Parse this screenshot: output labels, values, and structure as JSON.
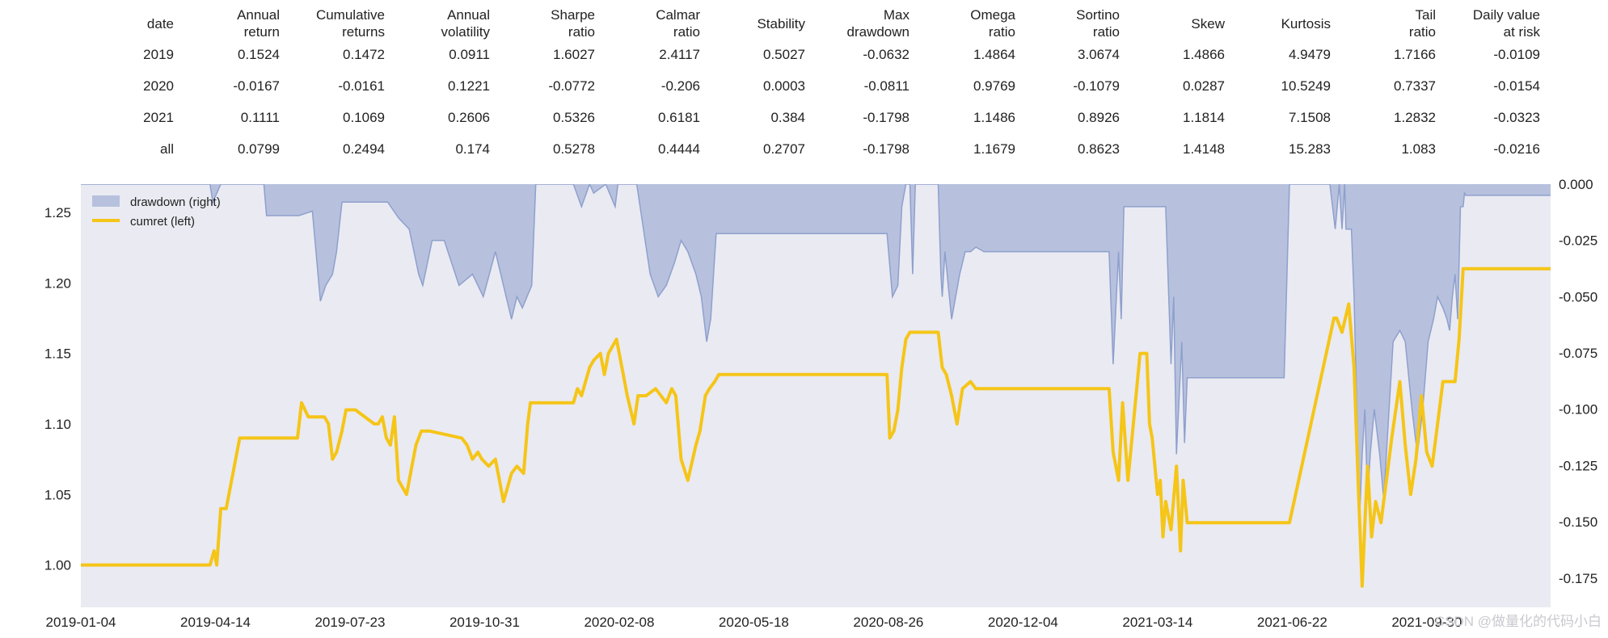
{
  "table": {
    "columns": [
      [
        "date"
      ],
      [
        "Annual",
        "return"
      ],
      [
        "Cumulative",
        "returns"
      ],
      [
        "Annual",
        "volatility"
      ],
      [
        "Sharpe",
        "ratio"
      ],
      [
        "Calmar",
        "ratio"
      ],
      [
        "Stability"
      ],
      [
        "Max",
        "drawdown"
      ],
      [
        "Omega",
        "ratio"
      ],
      [
        "Sortino",
        "ratio"
      ],
      [
        "Skew"
      ],
      [
        "Kurtosis"
      ],
      [
        "Tail",
        "ratio"
      ],
      [
        "Daily value",
        "at risk"
      ]
    ],
    "rows": [
      [
        "2019",
        "0.1524",
        "0.1472",
        "0.0911",
        "1.6027",
        "2.4117",
        "0.5027",
        "-0.0632",
        "1.4864",
        "3.0674",
        "1.4866",
        "4.9479",
        "1.7166",
        "-0.0109"
      ],
      [
        "2020",
        "-0.0167",
        "-0.0161",
        "0.1221",
        "-0.0772",
        "-0.206",
        "0.0003",
        "-0.0811",
        "0.9769",
        "-0.1079",
        "0.0287",
        "10.5249",
        "0.7337",
        "-0.0154"
      ],
      [
        "2021",
        "0.1111",
        "0.1069",
        "0.2606",
        "0.5326",
        "0.6181",
        "0.384",
        "-0.1798",
        "1.1486",
        "0.8926",
        "1.1814",
        "7.1508",
        "1.2832",
        "-0.0323"
      ],
      [
        "all",
        "0.0799",
        "0.2494",
        "0.174",
        "0.5278",
        "0.4444",
        "0.2707",
        "-0.1798",
        "1.1679",
        "0.8623",
        "1.4148",
        "15.283",
        "1.083",
        "-0.0216"
      ]
    ]
  },
  "watermark": "CSDN @做量化的代码小白",
  "chart_data": {
    "type": "line",
    "xlim": [
      "2019-01-04",
      "2021-12-31"
    ],
    "x_ticks": [
      "2019-01-04",
      "2019-04-14",
      "2019-07-23",
      "2019-10-31",
      "2020-02-08",
      "2020-05-18",
      "2020-08-26",
      "2020-12-04",
      "2021-03-14",
      "2021-06-22",
      "2021-09-30"
    ],
    "ylim_left": [
      0.97,
      1.27
    ],
    "y_ticks_left": [
      "1.00",
      "1.05",
      "1.10",
      "1.15",
      "1.20",
      "1.25"
    ],
    "ylim_right": [
      -0.188,
      0.0
    ],
    "y_ticks_right": [
      "0.000",
      "-0.025",
      "-0.050",
      "-0.075",
      "-0.100",
      "-0.125",
      "-0.150",
      "-0.175"
    ],
    "grid": false,
    "background": "#eaeaf2",
    "legend_position": "top-left",
    "series": [
      {
        "name": "drawdown (right)",
        "type": "area",
        "axis": "right",
        "color": "#a3b1d6",
        "x": [
          "2019-01-04",
          "2019-04-10",
          "2019-04-12",
          "2019-04-18",
          "2019-05-20",
          "2019-05-22",
          "2019-06-15",
          "2019-06-25",
          "2019-07-01",
          "2019-07-05",
          "2019-07-10",
          "2019-07-13",
          "2019-07-17",
          "2019-07-20",
          "2019-08-20",
          "2019-08-28",
          "2019-09-05",
          "2019-09-12",
          "2019-09-15",
          "2019-09-22",
          "2019-10-01",
          "2019-10-12",
          "2019-10-22",
          "2019-10-30",
          "2019-11-08",
          "2019-11-16",
          "2019-11-20",
          "2019-11-24",
          "2019-11-28",
          "2019-12-05",
          "2019-12-08",
          "2019-12-20",
          "2020-01-05",
          "2020-01-11",
          "2020-01-17",
          "2020-01-20",
          "2020-01-29",
          "2020-02-05",
          "2020-02-07",
          "2020-02-09",
          "2020-02-15",
          "2020-02-21",
          "2020-02-26",
          "2020-03-02",
          "2020-03-08",
          "2020-03-14",
          "2020-03-20",
          "2020-03-25",
          "2020-03-30",
          "2020-04-05",
          "2020-04-09",
          "2020-04-13",
          "2020-04-16",
          "2020-04-20",
          "2020-04-25",
          "2020-08-25",
          "2020-08-29",
          "2020-09-02",
          "2020-09-05",
          "2020-09-08",
          "2020-09-11",
          "2020-09-13",
          "2020-09-15",
          "2020-10-02",
          "2020-10-04",
          "2020-10-05",
          "2020-10-07",
          "2020-10-12",
          "2020-10-18",
          "2020-10-20",
          "2020-10-22",
          "2020-10-26",
          "2020-10-30",
          "2020-11-05",
          "2021-02-06",
          "2021-02-09",
          "2021-02-13",
          "2021-02-15",
          "2021-02-17",
          "2021-02-20",
          "2021-02-23",
          "2021-02-25",
          "2021-02-28",
          "2021-03-20",
          "2021-03-24",
          "2021-03-26",
          "2021-03-28",
          "2021-04-01",
          "2021-04-03",
          "2021-04-05",
          "2021-06-16",
          "2021-06-20",
          "2021-07-20",
          "2021-07-24",
          "2021-07-27",
          "2021-07-29",
          "2021-07-31",
          "2021-08-01",
          "2021-08-05",
          "2021-08-07",
          "2021-08-09",
          "2021-08-11",
          "2021-08-13",
          "2021-08-15",
          "2021-08-17",
          "2021-08-19",
          "2021-08-22",
          "2021-08-26",
          "2021-08-29",
          "2021-09-02",
          "2021-09-05",
          "2021-09-10",
          "2021-09-14",
          "2021-09-19",
          "2021-09-23",
          "2021-09-27",
          "2021-10-01",
          "2021-10-05",
          "2021-10-08",
          "2021-10-12",
          "2021-10-15",
          "2021-10-17",
          "2021-10-19",
          "2021-10-21",
          "2021-10-23",
          "2021-10-25",
          "2021-10-27",
          "2021-10-28",
          "2021-10-29",
          "2021-12-31"
        ],
        "y": [
          0.0,
          0.0,
          -0.008,
          0.0,
          0.0,
          -0.014,
          -0.014,
          -0.012,
          -0.052,
          -0.045,
          -0.04,
          -0.03,
          -0.008,
          -0.008,
          -0.008,
          -0.015,
          -0.02,
          -0.04,
          -0.045,
          -0.025,
          -0.025,
          -0.045,
          -0.04,
          -0.05,
          -0.03,
          -0.05,
          -0.06,
          -0.05,
          -0.055,
          -0.045,
          0.0,
          0.0,
          0.0,
          -0.01,
          0.0,
          -0.004,
          0.0,
          -0.01,
          0.0,
          0.0,
          0.0,
          0.0,
          -0.02,
          -0.04,
          -0.05,
          -0.045,
          -0.035,
          -0.025,
          -0.03,
          -0.04,
          -0.05,
          -0.07,
          -0.06,
          -0.022,
          -0.022,
          -0.022,
          -0.05,
          -0.045,
          -0.01,
          0.0,
          0.0,
          -0.04,
          0.0,
          0.0,
          -0.04,
          -0.05,
          -0.03,
          -0.06,
          -0.04,
          -0.035,
          -0.03,
          -0.03,
          -0.028,
          -0.03,
          -0.03,
          -0.08,
          -0.03,
          -0.06,
          -0.01,
          -0.01,
          -0.01,
          -0.01,
          -0.01,
          -0.01,
          -0.08,
          -0.05,
          -0.12,
          -0.07,
          -0.115,
          -0.086,
          -0.086,
          0.0,
          0.0,
          -0.02,
          0.0,
          -0.02,
          0.0,
          -0.02,
          -0.02,
          -0.05,
          -0.1,
          -0.15,
          -0.12,
          -0.1,
          -0.14,
          -0.12,
          -0.1,
          -0.12,
          -0.14,
          -0.1,
          -0.07,
          -0.065,
          -0.07,
          -0.1,
          -0.12,
          -0.1,
          -0.07,
          -0.06,
          -0.05,
          -0.055,
          -0.06,
          -0.065,
          -0.05,
          -0.04,
          -0.06,
          -0.01,
          -0.01,
          -0.004,
          -0.005,
          -0.005
        ]
      },
      {
        "name": "cumret (left)",
        "type": "line",
        "axis": "left",
        "color": "#f5c518",
        "x": [
          "2019-01-04",
          "2019-04-10",
          "2019-04-13",
          "2019-04-15",
          "2019-04-18",
          "2019-04-22",
          "2019-04-26",
          "2019-05-02",
          "2019-05-06",
          "2019-05-08",
          "2019-06-14",
          "2019-06-17",
          "2019-06-22",
          "2019-06-30",
          "2019-07-04",
          "2019-07-07",
          "2019-07-10",
          "2019-07-13",
          "2019-07-17",
          "2019-07-20",
          "2019-07-23",
          "2019-07-27",
          "2019-08-10",
          "2019-08-13",
          "2019-08-16",
          "2019-08-19",
          "2019-08-22",
          "2019-08-25",
          "2019-08-28",
          "2019-09-03",
          "2019-09-07",
          "2019-09-10",
          "2019-09-14",
          "2019-09-20",
          "2019-10-14",
          "2019-10-18",
          "2019-10-22",
          "2019-10-26",
          "2019-10-29",
          "2019-11-03",
          "2019-11-08",
          "2019-11-14",
          "2019-11-20",
          "2019-11-24",
          "2019-11-29",
          "2019-12-02",
          "2019-12-04",
          "2019-12-09",
          "2019-12-15",
          "2020-01-05",
          "2020-01-08",
          "2020-01-11",
          "2020-01-17",
          "2020-01-20",
          "2020-01-25",
          "2020-01-28",
          "2020-01-31",
          "2020-02-03",
          "2020-02-06",
          "2020-02-10",
          "2020-02-14",
          "2020-02-19",
          "2020-02-22",
          "2020-02-28",
          "2020-03-06",
          "2020-03-14",
          "2020-03-18",
          "2020-03-21",
          "2020-03-25",
          "2020-03-30",
          "2020-04-05",
          "2020-04-08",
          "2020-04-12",
          "2020-04-15",
          "2020-04-19",
          "2020-04-22",
          "2020-08-25",
          "2020-08-27",
          "2020-08-30",
          "2020-09-02",
          "2020-09-05",
          "2020-09-08",
          "2020-09-11",
          "2020-09-14",
          "2020-09-20",
          "2020-10-02",
          "2020-10-05",
          "2020-10-08",
          "2020-10-12",
          "2020-10-16",
          "2020-10-20",
          "2020-10-26",
          "2020-10-30",
          "2021-02-06",
          "2021-02-09",
          "2021-02-13",
          "2021-02-16",
          "2021-02-20",
          "2021-02-23",
          "2021-03-01",
          "2021-03-06",
          "2021-03-08",
          "2021-03-10",
          "2021-03-14",
          "2021-03-16",
          "2021-03-18",
          "2021-03-20",
          "2021-03-24",
          "2021-03-28",
          "2021-03-31",
          "2021-04-02",
          "2021-04-05",
          "2021-04-20",
          "2021-06-15",
          "2021-06-20",
          "2021-07-23",
          "2021-07-25",
          "2021-07-29",
          "2021-08-03",
          "2021-08-07",
          "2021-08-10",
          "2021-08-13",
          "2021-08-15",
          "2021-08-17",
          "2021-08-20",
          "2021-08-23",
          "2021-08-27",
          "2021-08-31",
          "2021-09-04",
          "2021-09-07",
          "2021-09-10",
          "2021-09-14",
          "2021-09-18",
          "2021-09-22",
          "2021-09-26",
          "2021-09-30",
          "2021-10-04",
          "2021-10-08",
          "2021-10-12",
          "2021-10-15",
          "2021-10-18",
          "2021-10-21",
          "2021-10-24",
          "2021-10-27",
          "2021-10-29",
          "2021-12-31"
        ],
        "y": [
          1.0,
          1.0,
          1.01,
          1.0,
          1.04,
          1.04,
          1.06,
          1.09,
          1.09,
          1.09,
          1.09,
          1.115,
          1.105,
          1.105,
          1.105,
          1.1,
          1.075,
          1.08,
          1.095,
          1.11,
          1.11,
          1.11,
          1.1,
          1.1,
          1.105,
          1.09,
          1.085,
          1.105,
          1.06,
          1.05,
          1.07,
          1.085,
          1.095,
          1.095,
          1.09,
          1.085,
          1.075,
          1.08,
          1.075,
          1.07,
          1.075,
          1.045,
          1.065,
          1.07,
          1.065,
          1.1,
          1.115,
          1.115,
          1.115,
          1.115,
          1.125,
          1.12,
          1.14,
          1.145,
          1.15,
          1.135,
          1.15,
          1.155,
          1.16,
          1.14,
          1.12,
          1.1,
          1.12,
          1.12,
          1.125,
          1.115,
          1.125,
          1.12,
          1.075,
          1.06,
          1.085,
          1.095,
          1.12,
          1.125,
          1.13,
          1.135,
          1.135,
          1.09,
          1.095,
          1.11,
          1.14,
          1.16,
          1.165,
          1.165,
          1.165,
          1.165,
          1.14,
          1.135,
          1.12,
          1.1,
          1.125,
          1.13,
          1.125,
          1.125,
          1.08,
          1.06,
          1.115,
          1.06,
          1.09,
          1.15,
          1.15,
          1.1,
          1.09,
          1.05,
          1.06,
          1.02,
          1.045,
          1.025,
          1.07,
          1.01,
          1.06,
          1.03,
          1.03,
          1.03,
          1.03,
          1.175,
          1.175,
          1.165,
          1.185,
          1.14,
          1.06,
          0.985,
          1.03,
          1.07,
          1.02,
          1.045,
          1.03,
          1.06,
          1.09,
          1.11,
          1.13,
          1.085,
          1.05,
          1.075,
          1.12,
          1.08,
          1.07,
          1.1,
          1.13,
          1.13,
          1.13,
          1.13,
          1.16,
          1.21,
          1.21,
          1.21
        ]
      }
    ]
  }
}
